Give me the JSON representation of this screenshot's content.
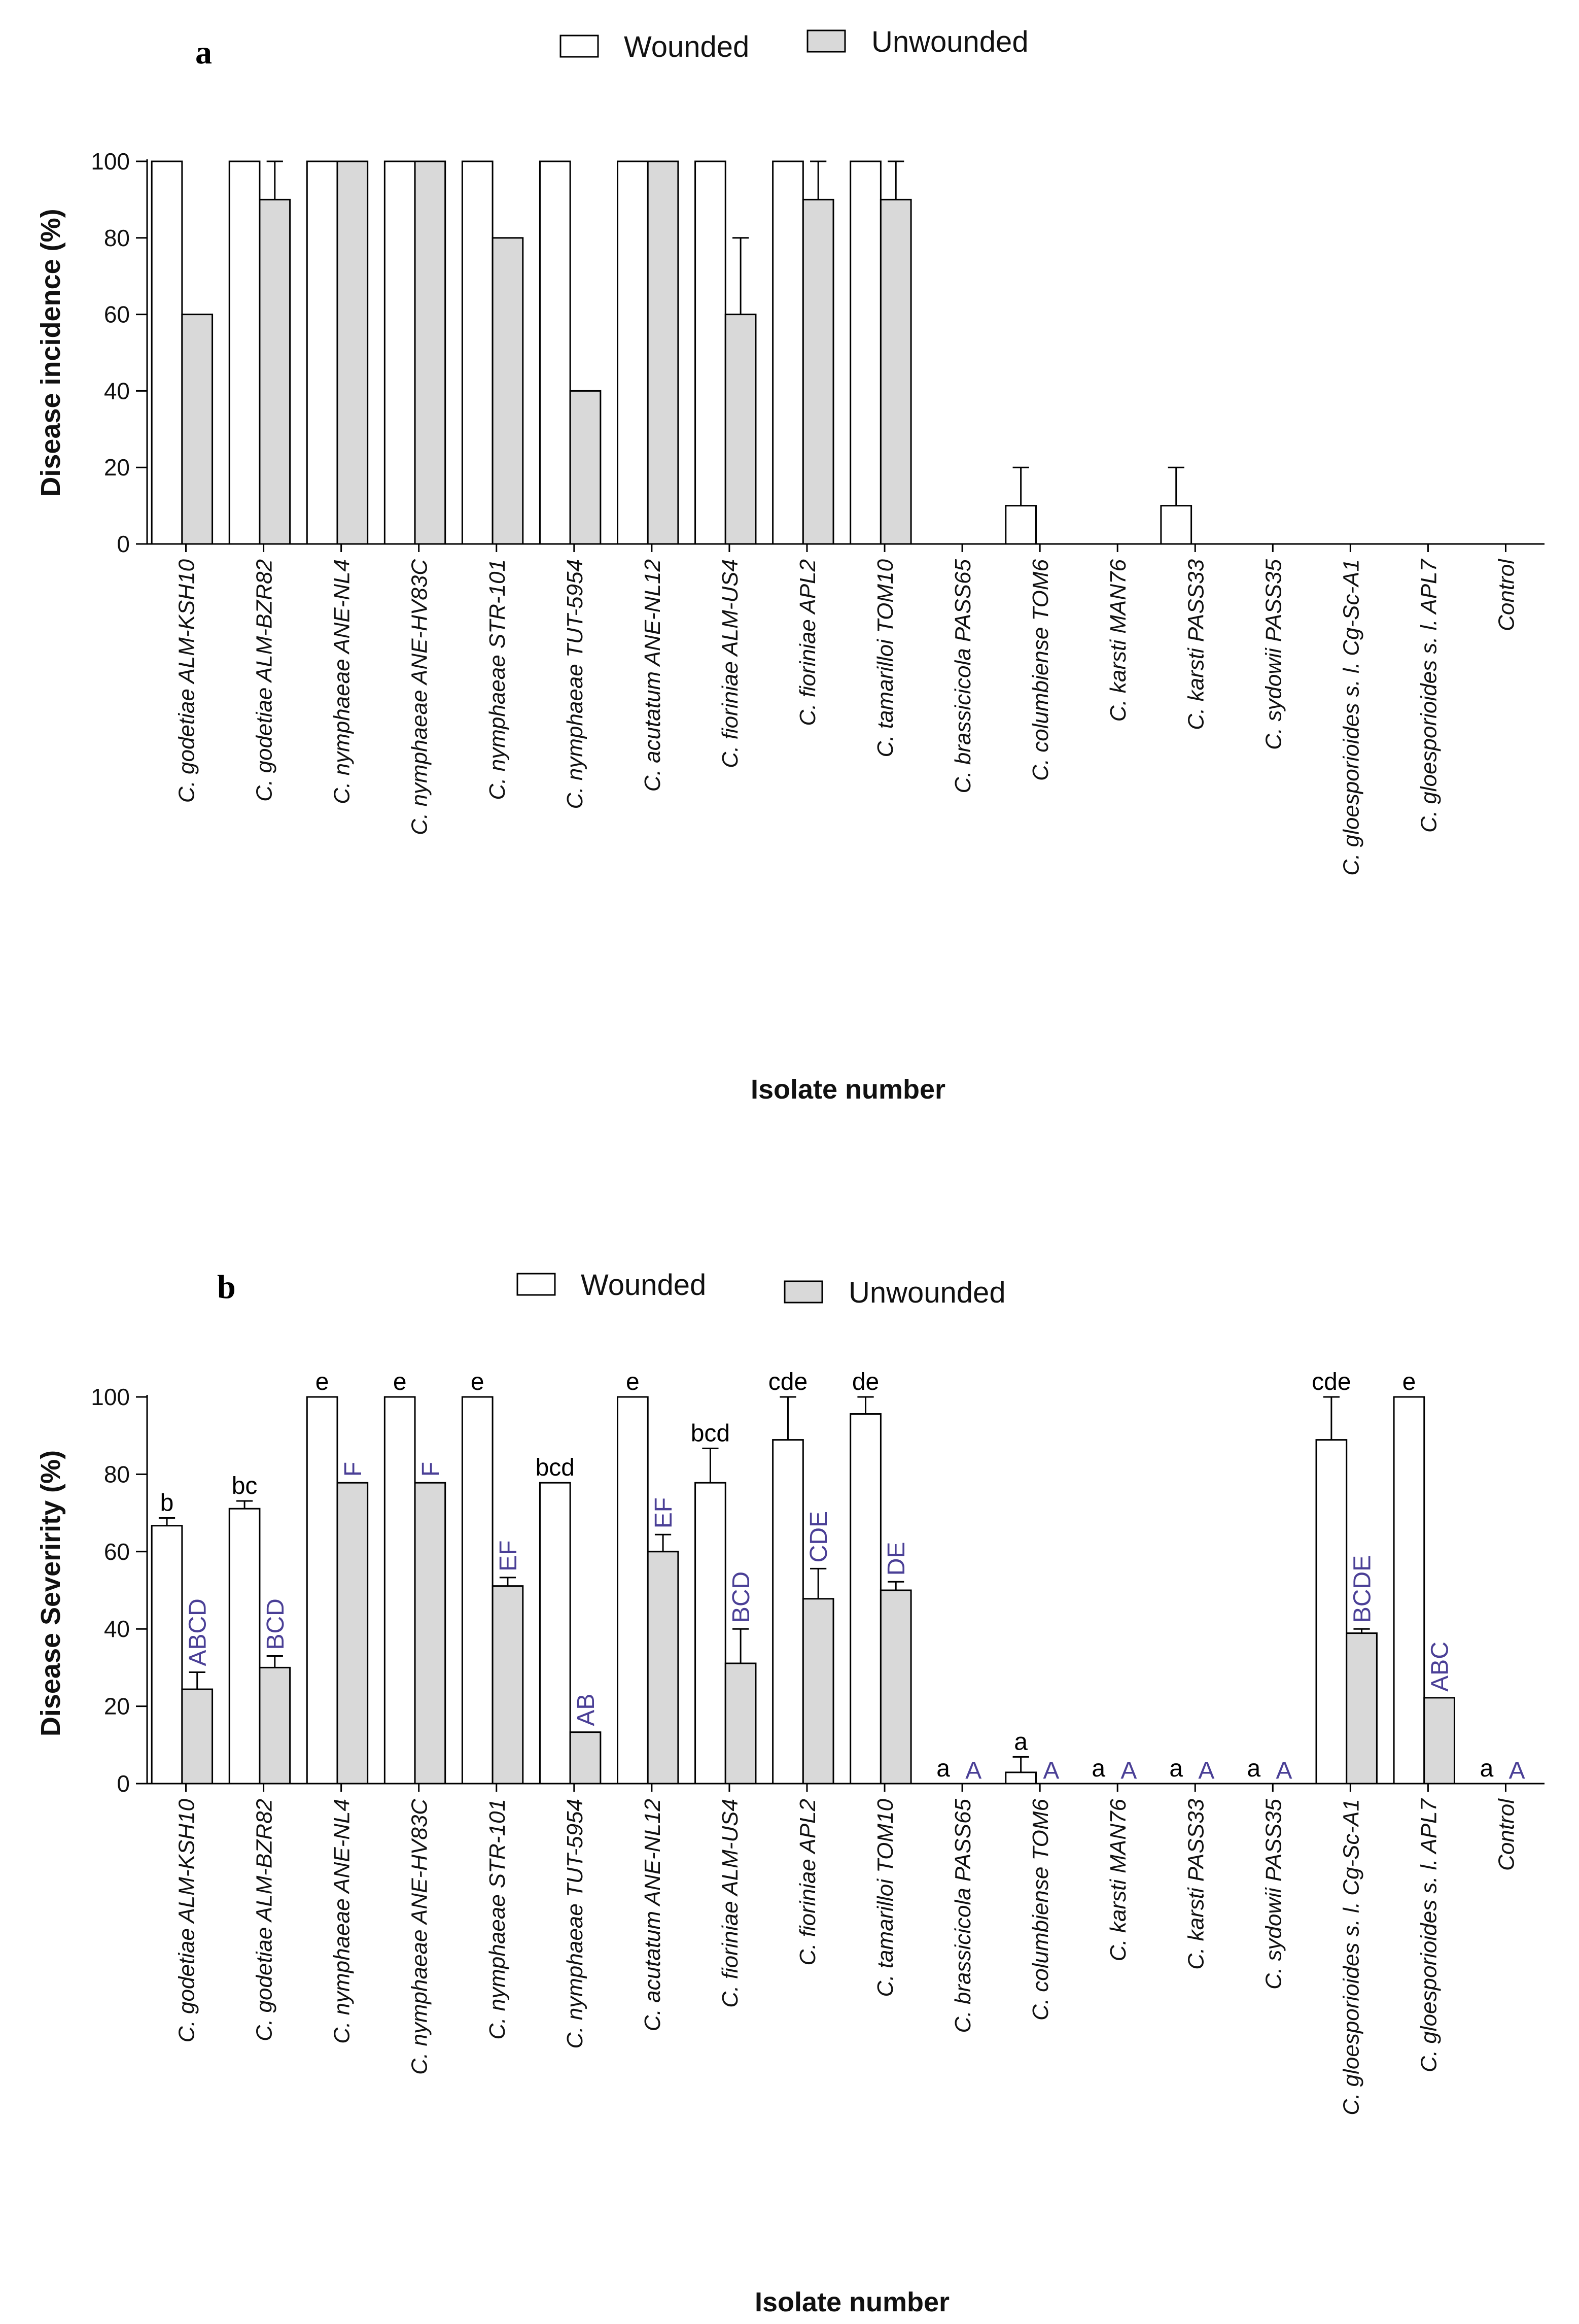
{
  "chart_data": [
    {
      "panel": "a",
      "type": "bar",
      "ylabel": "Disease incidence  (%)",
      "xlabel": "Isolate number",
      "ylim": [
        0,
        100
      ],
      "yticks": [
        0,
        20,
        40,
        60,
        80,
        100
      ],
      "legend": [
        {
          "label": "Wounded",
          "color": "#ffffff"
        },
        {
          "label": "Unwounded",
          "color": "#d9d9d9"
        }
      ],
      "categories": [
        "C. godetiae ALM-KSH10",
        "C. godetiae ALM-BZR82",
        "C. nymphaeae ANE-NL4",
        "C. nymphaeae ANE-HV83C",
        "C. nymphaeae STR-101",
        "C. nymphaeae TUT-5954",
        "C. acutatum ANE-NL12",
        "C. fioriniae ALM-US4",
        "C. fioriniae  APL2",
        "C. tamarilloi TOM10",
        "C. brassicicola PASS65",
        "C. columbiense TOM6",
        "C. karsti MAN76",
        "C. karsti PASS33",
        "C. sydowii PASS35",
        "C. gloesporioides s. l. Cg-Sc-A1",
        "C. gloesporioides s. l. APL7",
        "Control"
      ],
      "series": [
        {
          "name": "Wounded",
          "values": [
            100,
            100,
            100,
            100,
            100,
            100,
            100,
            100,
            100,
            100,
            0,
            10,
            0,
            10,
            0,
            0,
            0,
            0
          ],
          "errors": [
            0,
            0,
            0,
            0,
            0,
            0,
            0,
            0,
            0,
            0,
            0,
            10,
            0,
            10,
            0,
            0,
            0,
            0
          ]
        },
        {
          "name": "Unwounded",
          "values": [
            60,
            90,
            100,
            100,
            80,
            40,
            100,
            60,
            90,
            90,
            0,
            0,
            0,
            0,
            0,
            0,
            0,
            0
          ],
          "errors": [
            0,
            10,
            0,
            0,
            0,
            0,
            0,
            20,
            10,
            10,
            0,
            0,
            0,
            0,
            0,
            0,
            0,
            0
          ]
        }
      ]
    },
    {
      "panel": "b",
      "type": "bar",
      "ylabel": "Disease Severirity (%)",
      "xlabel": "Isolate number",
      "ylim": [
        0,
        100
      ],
      "yticks": [
        0,
        20,
        40,
        60,
        80,
        100
      ],
      "legend": [
        {
          "label": "Wounded",
          "color": "#ffffff"
        },
        {
          "label": "Unwounded",
          "color": "#d9d9d9"
        }
      ],
      "categories": [
        "C. godetiae ALM-KSH10",
        "C. godetiae ALM-BZR82",
        "C. nymphaeae ANE-NL4",
        "C. nymphaeae ANE-HV83C",
        "C. nymphaeae STR-101",
        "C. nymphaeae TUT-5954",
        "C. acutatum ANE-NL12",
        "C. fioriniae ALM-US4",
        "C. fioriniae  APL2",
        "C. tamarilloi TOM10",
        "C. brassicicola PASS65",
        "C. columbiense TOM6",
        "C. karsti MAN76",
        "C. karsti PASS33",
        "C. sydowii PASS35",
        "C. gloesporioides s. l. Cg-Sc-A1",
        "C. gloesporioides s. l. APL7",
        "Control"
      ],
      "series": [
        {
          "name": "Wounded",
          "values": [
            66.7,
            71.1,
            100,
            100,
            100,
            77.8,
            100,
            77.8,
            88.9,
            95.6,
            0,
            2.9,
            0,
            0,
            0,
            88.9,
            100,
            0
          ],
          "errors": [
            2,
            2,
            0,
            0,
            0,
            0,
            0,
            8.9,
            11.1,
            4.4,
            0,
            4,
            0,
            0,
            0,
            11.1,
            0,
            0
          ]
        },
        {
          "name": "Unwounded",
          "values": [
            24.4,
            30,
            77.8,
            77.8,
            51.1,
            13.3,
            60,
            31.1,
            47.8,
            50,
            0,
            0,
            0,
            0,
            0,
            38.9,
            22.2,
            0
          ],
          "errors": [
            4.4,
            3,
            0,
            0,
            2.2,
            0,
            4.4,
            8.9,
            7.8,
            2.2,
            0,
            0,
            0,
            0,
            0,
            1.1,
            0,
            0
          ]
        }
      ],
      "letters_wounded": [
        "b",
        "bc",
        "e",
        "e",
        "e",
        "bcd",
        "e",
        "bcd",
        "cde",
        "de",
        "a",
        "a",
        "a",
        "a",
        "a",
        "cde",
        "e",
        "a"
      ],
      "letters_unwounded": [
        "ABCD",
        "BCD",
        "F",
        "F",
        "EF",
        "AB",
        "EF",
        "BCD",
        "CDE",
        "DE",
        "A",
        "A",
        "A",
        "A",
        "A",
        "BCDE",
        "ABC",
        "A"
      ]
    }
  ]
}
